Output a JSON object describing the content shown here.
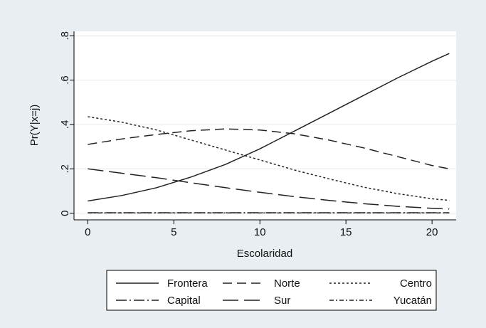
{
  "chart_data": {
    "type": "line",
    "xlabel": "Escolaridad",
    "ylabel": "Pr(Y|x=j)",
    "xlim": [
      -0.8,
      21.4
    ],
    "ylim": [
      -0.03,
      0.82
    ],
    "xticks": [
      0,
      5,
      10,
      15,
      20
    ],
    "xtick_labels": [
      "0",
      "5",
      "10",
      "15",
      "20"
    ],
    "yticks": [
      0,
      0.2,
      0.4,
      0.6,
      0.8
    ],
    "ytick_labels": [
      "0",
      ".2",
      ".4",
      ".6",
      ".8"
    ],
    "grid": true,
    "legend_position": "bottom",
    "x": [
      0,
      2,
      4,
      6,
      8,
      10,
      12,
      14,
      16,
      18,
      20,
      21
    ],
    "series": [
      {
        "name": "Frontera",
        "dash": "solid",
        "values": [
          0.055,
          0.08,
          0.115,
          0.163,
          0.22,
          0.29,
          0.37,
          0.45,
          0.53,
          0.61,
          0.685,
          0.72
        ]
      },
      {
        "name": "Norte",
        "dash": "dash",
        "values": [
          0.31,
          0.335,
          0.355,
          0.372,
          0.38,
          0.375,
          0.358,
          0.33,
          0.295,
          0.255,
          0.215,
          0.2
        ]
      },
      {
        "name": "Centro",
        "dash": "shortdash",
        "values": [
          0.435,
          0.41,
          0.375,
          0.33,
          0.285,
          0.24,
          0.195,
          0.155,
          0.118,
          0.088,
          0.065,
          0.058
        ]
      },
      {
        "name": "Capital",
        "dash": "dashdot",
        "values": [
          0.002,
          0.002,
          0.002,
          0.002,
          0.002,
          0.002,
          0.002,
          0.002,
          0.002,
          0.002,
          0.002,
          0.002
        ]
      },
      {
        "name": "Sur",
        "dash": "longdash",
        "values": [
          0.2,
          0.18,
          0.16,
          0.137,
          0.115,
          0.094,
          0.075,
          0.058,
          0.043,
          0.031,
          0.022,
          0.019
        ]
      },
      {
        "name": "Yucatán",
        "dash": "dashdotshort",
        "values": [
          0.001,
          0.001,
          0.001,
          0.001,
          0.001,
          0.001,
          0.001,
          0.001,
          0.001,
          0.001,
          0.001,
          0.001
        ]
      }
    ]
  }
}
